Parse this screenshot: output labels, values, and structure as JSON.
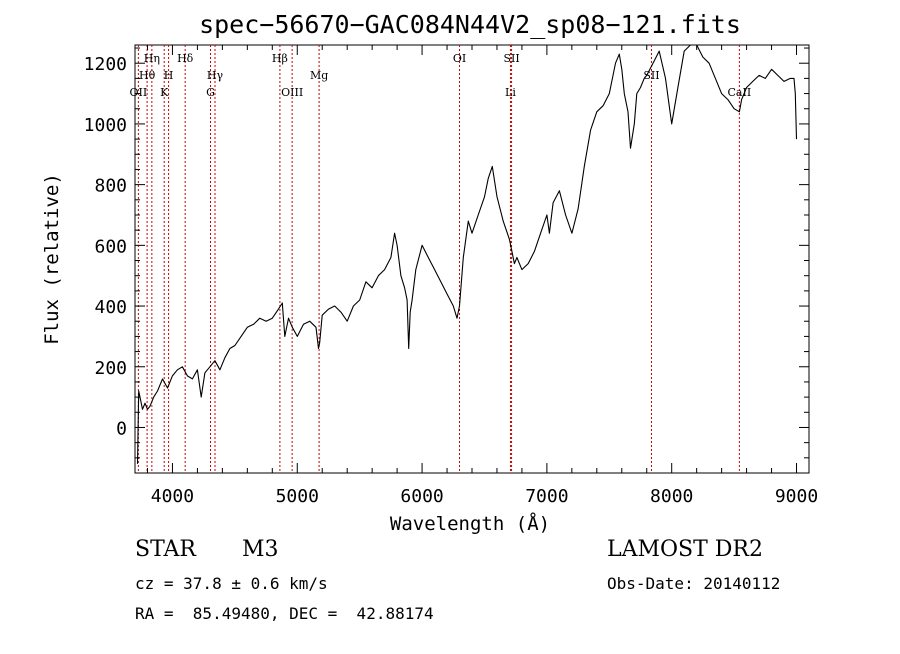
{
  "chart_data": {
    "type": "line",
    "title": "spec−56670−GAC084N44V2_sp08−121.fits",
    "xlabel": "Wavelength (Å)",
    "ylabel": "Flux (relative)",
    "xlim": [
      3700,
      9100
    ],
    "ylim": [
      -150,
      1260
    ],
    "x_ticks": [
      4000,
      5000,
      6000,
      7000,
      8000,
      9000
    ],
    "y_ticks": [
      0,
      200,
      400,
      600,
      800,
      1000,
      1200
    ],
    "x_minor_step": 200,
    "y_minor_step": 50,
    "grid": false,
    "line_color": "#000000",
    "marker_line_color": "#cc0000",
    "spectral_lines": [
      {
        "label": "OII",
        "wavelength": 3727,
        "row": 3
      },
      {
        "label": "Hη",
        "wavelength": 3835,
        "row": 1
      },
      {
        "label": "Hθ",
        "wavelength": 3797,
        "row": 2
      },
      {
        "label": "K",
        "wavelength": 3934,
        "row": 3
      },
      {
        "label": "H",
        "wavelength": 3969,
        "row": 2
      },
      {
        "label": "Hδ",
        "wavelength": 4102,
        "row": 1
      },
      {
        "label": "G",
        "wavelength": 4305,
        "row": 3
      },
      {
        "label": "Hγ",
        "wavelength": 4341,
        "row": 2
      },
      {
        "label": "Hβ",
        "wavelength": 4861,
        "row": 1
      },
      {
        "label": "OIII",
        "wavelength": 4959,
        "row": 3
      },
      {
        "label": "Mg",
        "wavelength": 5175,
        "row": 2
      },
      {
        "label": "OI",
        "wavelength": 6300,
        "row": 1
      },
      {
        "label": "SII",
        "wavelength": 6717,
        "row": 1
      },
      {
        "label": "Li",
        "wavelength": 6708,
        "row": 3
      },
      {
        "label": "SII",
        "wavelength": 7838,
        "row": 2
      },
      {
        "label": "CaII",
        "wavelength": 8542,
        "row": 3
      }
    ],
    "series": [
      {
        "x": [
          3720,
          3730,
          3740,
          3760,
          3780,
          3800,
          3820,
          3850,
          3880,
          3920,
          3960,
          4000,
          4040,
          4080,
          4120,
          4160,
          4200,
          4230,
          4260,
          4300,
          4340,
          4380,
          4420,
          4460,
          4500,
          4550,
          4600,
          4650,
          4700,
          4750,
          4800,
          4850,
          4880,
          4900,
          4930,
          4960,
          5000,
          5050,
          5100,
          5150,
          5170,
          5180,
          5200,
          5250,
          5300,
          5350,
          5400,
          5450,
          5500,
          5550,
          5600,
          5650,
          5700,
          5750,
          5780,
          5800,
          5830,
          5860,
          5880,
          5893,
          5905,
          5920,
          5950,
          6000,
          6050,
          6100,
          6150,
          6200,
          6250,
          6280,
          6300,
          6330,
          6370,
          6400,
          6450,
          6500,
          6530,
          6563,
          6600,
          6650,
          6700,
          6720,
          6740,
          6760,
          6800,
          6850,
          6900,
          6950,
          7000,
          7020,
          7050,
          7100,
          7150,
          7200,
          7250,
          7300,
          7350,
          7400,
          7450,
          7500,
          7550,
          7580,
          7600,
          7620,
          7650,
          7670,
          7700,
          7720,
          7750,
          7780,
          7800,
          7850,
          7900,
          7950,
          8000,
          8050,
          8100,
          8150,
          8200,
          8250,
          8300,
          8350,
          8400,
          8450,
          8500,
          8542,
          8560,
          8600,
          8650,
          8700,
          8750,
          8800,
          8850,
          8900,
          8950,
          8980,
          8990,
          9000
        ],
        "y": [
          -120,
          120,
          100,
          60,
          80,
          60,
          70,
          100,
          120,
          160,
          130,
          170,
          190,
          200,
          170,
          160,
          190,
          100,
          180,
          200,
          220,
          190,
          230,
          260,
          270,
          300,
          330,
          340,
          360,
          350,
          360,
          390,
          410,
          300,
          360,
          330,
          300,
          340,
          350,
          330,
          260,
          280,
          370,
          390,
          400,
          380,
          350,
          400,
          420,
          480,
          460,
          500,
          520,
          560,
          640,
          600,
          500,
          460,
          420,
          260,
          380,
          420,
          520,
          600,
          560,
          520,
          480,
          440,
          400,
          360,
          400,
          560,
          680,
          640,
          700,
          760,
          820,
          860,
          760,
          680,
          620,
          580,
          540,
          560,
          520,
          540,
          580,
          640,
          700,
          640,
          740,
          780,
          700,
          640,
          720,
          860,
          980,
          1040,
          1060,
          1100,
          1200,
          1230,
          1180,
          1100,
          1040,
          920,
          1000,
          1100,
          1120,
          1150,
          1160,
          1200,
          1240,
          1150,
          1000,
          1120,
          1240,
          1260,
          1260,
          1220,
          1200,
          1150,
          1100,
          1080,
          1050,
          1040,
          1080,
          1120,
          1140,
          1160,
          1150,
          1180,
          1160,
          1140,
          1150,
          1150,
          1100,
          950
        ]
      }
    ]
  },
  "footer": {
    "object_class": "STAR",
    "subclass": "M3",
    "survey": "LAMOST DR2",
    "redshift": "cz = 37.8 ± 0.6 km/s",
    "obs_date": "Obs-Date: 20140112",
    "coords": "RA =  85.49480, DEC =  42.88174"
  }
}
